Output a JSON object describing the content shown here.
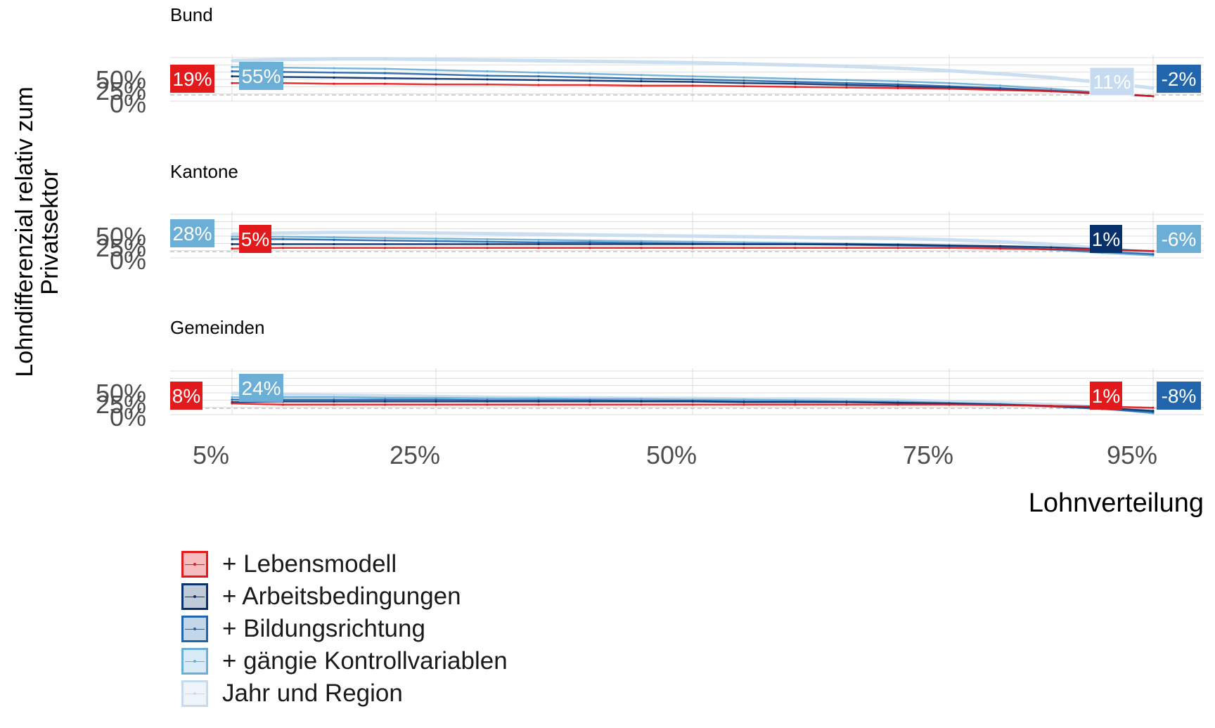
{
  "chart_data": {
    "type": "line",
    "ylabel": "Lohndifferenzial relativ zum\nPrivatsektor",
    "xlabel": "Lohnverteilung",
    "x_ticks": [
      "5%",
      "25%",
      "50%",
      "75%",
      "95%"
    ],
    "y_ticks": [
      "0%",
      "25%",
      "50%"
    ],
    "x": [
      5,
      10,
      15,
      20,
      25,
      30,
      35,
      40,
      45,
      50,
      55,
      60,
      65,
      70,
      75,
      80,
      85,
      90,
      95
    ],
    "ylim": [
      -10,
      60
    ],
    "series_names": [
      "+ Lebensmodell",
      "+ Arbeitsbedingungen",
      "+ Bildungsrichtung",
      "+ gängie Kontrollvariablen",
      "Jahr und Region"
    ],
    "colors": [
      "#e31a1c",
      "#08306b",
      "#2166ac",
      "#6baed6",
      "#c6dbef"
    ],
    "panels": [
      {
        "title": "Bund",
        "series": [
          {
            "name": "Jahr und Region",
            "values": [
              55,
              57,
              58,
              58,
              57,
              56,
              55,
              54,
              53,
              52,
              50,
              48,
              46,
              43,
              39,
              34,
              28,
              20,
              11
            ]
          },
          {
            "name": "+ gängie Kontrollvariablen",
            "values": [
              45,
              44,
              43,
              42,
              40,
              38,
              36,
              34,
              32,
              30,
              28,
              26,
              24,
              22,
              19,
              15,
              10,
              4,
              -2
            ]
          },
          {
            "name": "+ Bildungsrichtung",
            "values": [
              38,
              37,
              36,
              35,
              33,
              31,
              30,
              28,
              26,
              25,
              23,
              21,
              19,
              17,
              14,
              11,
              7,
              3,
              -2
            ]
          },
          {
            "name": "+ Arbeitsbedingungen",
            "values": [
              30,
              29,
              28,
              27,
              26,
              25,
              24,
              23,
              22,
              21,
              19,
              18,
              16,
              14,
              12,
              9,
              6,
              2,
              -2
            ]
          },
          {
            "name": "+ Lebensmodell",
            "values": [
              19,
              19,
              18,
              18,
              17,
              17,
              16,
              16,
              15,
              15,
              14,
              13,
              12,
              11,
              10,
              8,
              6,
              3,
              -2
            ]
          }
        ],
        "labels": [
          {
            "text": "19%",
            "color": "#e31a1c",
            "side": "left",
            "value": 19
          },
          {
            "text": "55%",
            "color": "#6baed6",
            "side": "left2",
            "value": 55
          },
          {
            "text": "11%",
            "color": "#c6dbef",
            "side": "right",
            "value": 11
          },
          {
            "text": "-2%",
            "color": "#2166ac",
            "side": "right2",
            "value": -2
          }
        ]
      },
      {
        "title": "Kantone",
        "series": [
          {
            "name": "Jahr und Region",
            "values": [
              28,
              30,
              31,
              31,
              30,
              29,
              28,
              27,
              26,
              25,
              24,
              23,
              22,
              21,
              19,
              16,
              12,
              5,
              -2
            ]
          },
          {
            "name": "+ gängie Kontrollvariablen",
            "values": [
              24,
              24,
              23,
              22,
              21,
              20,
              19,
              18,
              17,
              16,
              15,
              14,
              13,
              12,
              10,
              7,
              3,
              -2,
              -6
            ]
          },
          {
            "name": "+ Bildungsrichtung",
            "values": [
              20,
              20,
              19,
              18,
              17,
              16,
              15,
              15,
              14,
              13,
              12,
              12,
              11,
              10,
              9,
              7,
              4,
              0,
              -4
            ]
          },
          {
            "name": "+ Arbeitsbedingungen",
            "values": [
              12,
              12,
              12,
              12,
              12,
              12,
              12,
              12,
              12,
              12,
              12,
              12,
              12,
              11,
              10,
              9,
              7,
              4,
              1
            ]
          },
          {
            "name": "+ Lebensmodell",
            "values": [
              5,
              6,
              6,
              6,
              6,
              6,
              6,
              6,
              6,
              6,
              6,
              6,
              6,
              6,
              6,
              5,
              4,
              3,
              1
            ]
          }
        ],
        "labels": [
          {
            "text": "28%",
            "color": "#6baed6",
            "side": "left",
            "value": 28
          },
          {
            "text": "5%",
            "color": "#e31a1c",
            "side": "left2",
            "value": 5
          },
          {
            "text": "1%",
            "color": "#08306b",
            "side": "right",
            "value": 1
          },
          {
            "text": "-6%",
            "color": "#6baed6",
            "side": "right2",
            "value": -6
          }
        ]
      },
      {
        "title": "Gemeinden",
        "series": [
          {
            "name": "Jahr und Region",
            "values": [
              24,
              22,
              21,
              20,
              19,
              18,
              17,
              17,
              16,
              16,
              15,
              15,
              14,
              13,
              11,
              9,
              6,
              2,
              -3
            ]
          },
          {
            "name": "+ gängie Kontrollvariablen",
            "values": [
              18,
              18,
              18,
              17,
              17,
              16,
              16,
              15,
              15,
              14,
              14,
              13,
              12,
              11,
              9,
              7,
              4,
              0,
              -8
            ]
          },
          {
            "name": "+ Bildungsrichtung",
            "values": [
              14,
              14,
              14,
              14,
              14,
              13,
              13,
              13,
              12,
              12,
              11,
              11,
              10,
              9,
              8,
              6,
              3,
              -1,
              -6
            ]
          },
          {
            "name": "+ Arbeitsbedingungen",
            "values": [
              10,
              11,
              11,
              11,
              11,
              11,
              11,
              11,
              11,
              11,
              10,
              10,
              10,
              9,
              8,
              6,
              4,
              1,
              -4
            ]
          },
          {
            "name": "+ Lebensmodell",
            "values": [
              8,
              6,
              6,
              6,
              6,
              6,
              6,
              6,
              6,
              6,
              6,
              6,
              6,
              6,
              6,
              5,
              4,
              3,
              1
            ]
          }
        ],
        "labels": [
          {
            "text": "8%",
            "color": "#e31a1c",
            "side": "left",
            "value": 8
          },
          {
            "text": "24%",
            "color": "#6baed6",
            "side": "left2",
            "value": 24
          },
          {
            "text": "1%",
            "color": "#e31a1c",
            "side": "right",
            "value": 1
          },
          {
            "text": "-8%",
            "color": "#2166ac",
            "side": "right2",
            "value": -8
          }
        ]
      }
    ],
    "legend": [
      {
        "label": "+ Lebensmodell",
        "color": "#e31a1c",
        "fill": "#f7bcbd"
      },
      {
        "label": "+ Arbeitsbedingungen",
        "color": "#08306b",
        "fill": "#bfcbd8"
      },
      {
        "label": "+ Bildungsrichtung",
        "color": "#2166ac",
        "fill": "#c4d6ea"
      },
      {
        "label": "+ gängie Kontrollvariablen",
        "color": "#6baed6",
        "fill": "#d9ebf6"
      },
      {
        "label": "Jahr und Region",
        "color": "#c6dbef",
        "fill": "#eef4fa"
      }
    ],
    "legend_position": "bottom-left",
    "grid": true
  }
}
